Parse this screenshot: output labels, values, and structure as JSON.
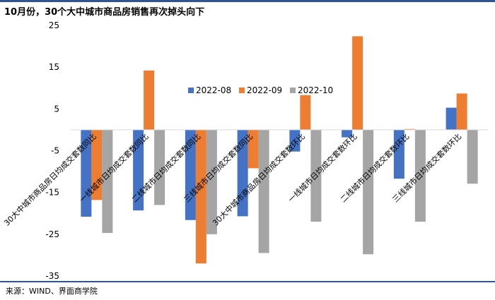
{
  "title": "10月份，30个大中城市商品房销售再次掉头向下",
  "source": "来源：WIND、界面商学院",
  "colors": {
    "accent": "#2f5597"
  },
  "chart_data": {
    "type": "bar",
    "title": "10月份，30个大中城市商品房销售再次掉头向下",
    "categories": [
      "30大中城市商品房日均成交套数同比",
      "一线城市日均成交套数同比",
      "二线城市日均成交套数同比",
      "三线城市日均成交套数同比",
      "30大中城市商品房日均成交套数环比",
      "一线城市日均成交套数环比",
      "二线城市日均成交套数环比",
      "三线城市日均成交套数环比"
    ],
    "series": [
      {
        "name": "2022-08",
        "color": "#4472c4",
        "values": [
          -20.8,
          -19.3,
          -21.6,
          -20.7,
          -5.2,
          -1.8,
          -11.7,
          5.3
        ]
      },
      {
        "name": "2022-09",
        "color": "#ed7d31",
        "values": [
          -16.8,
          14.2,
          -32.0,
          -9.2,
          8.3,
          22.4,
          0.2,
          8.7
        ]
      },
      {
        "name": "2022-10",
        "color": "#a5a5a5",
        "values": [
          -24.7,
          -18.0,
          -25.0,
          -29.5,
          -22.0,
          -29.8,
          -22.0,
          -12.9
        ]
      }
    ],
    "yticks": [
      25,
      15,
      5,
      -5,
      -15,
      -25,
      -35
    ],
    "ylim": [
      -35,
      25
    ],
    "legend": "center",
    "grid": false
  }
}
